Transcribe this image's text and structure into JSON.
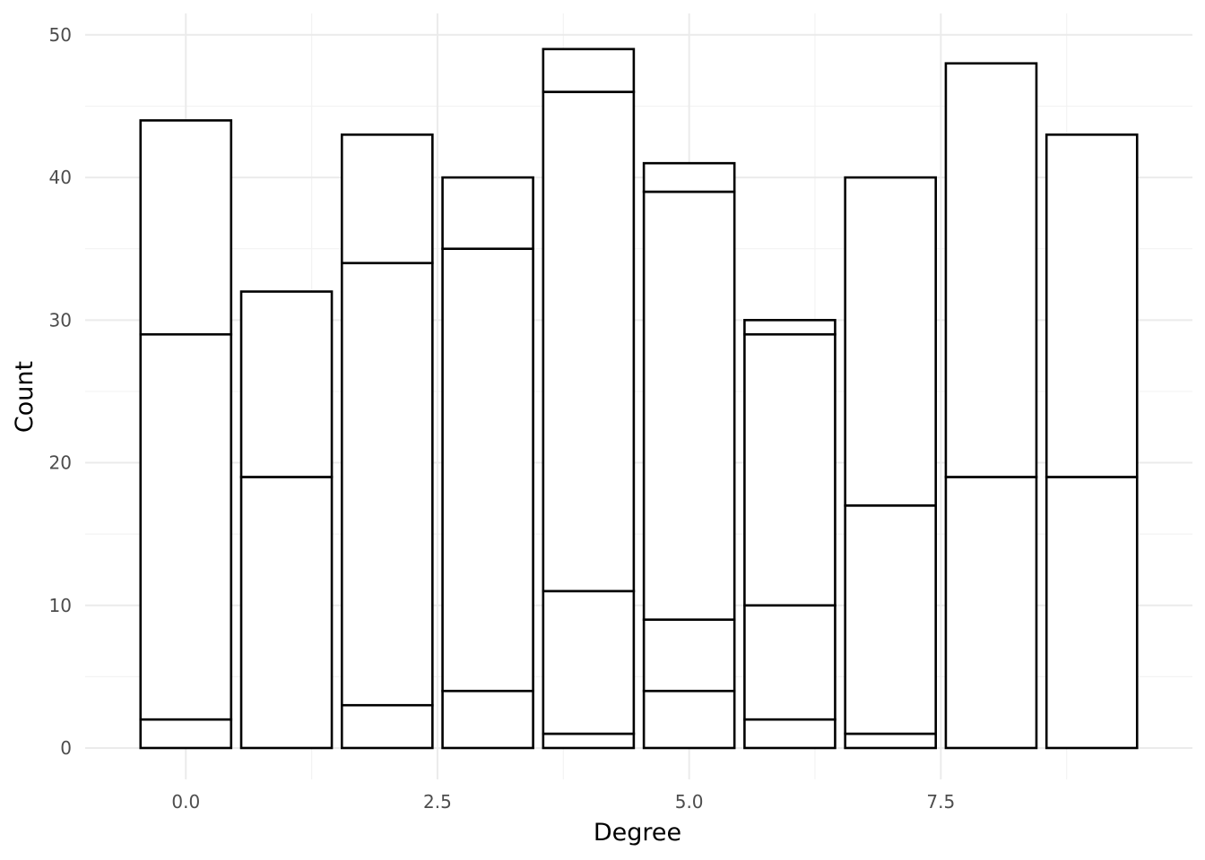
{
  "chart_data": {
    "type": "bar",
    "stacked": true,
    "xlabel": "Degree",
    "ylabel": "Count",
    "x": [
      0,
      1,
      2,
      3,
      4,
      5,
      6,
      7,
      8,
      9
    ],
    "xlim": [
      -1,
      10
    ],
    "ylim": [
      -2.2,
      51.5
    ],
    "x_ticks": [
      0.0,
      2.5,
      5.0,
      7.5
    ],
    "x_tick_labels": [
      "0.0",
      "2.5",
      "5.0",
      "7.5"
    ],
    "y_ticks": [
      0,
      10,
      20,
      30,
      40,
      50
    ],
    "y_tick_labels": [
      "0",
      "10",
      "20",
      "30",
      "40",
      "50"
    ],
    "grid": true,
    "legend": "none",
    "bars": [
      {
        "x": 0,
        "cumulative": [
          2,
          29,
          44
        ]
      },
      {
        "x": 1,
        "cumulative": [
          19,
          32
        ]
      },
      {
        "x": 2,
        "cumulative": [
          3,
          34,
          43
        ]
      },
      {
        "x": 3,
        "cumulative": [
          4,
          35,
          40
        ]
      },
      {
        "x": 4,
        "cumulative": [
          1,
          11,
          46,
          49
        ]
      },
      {
        "x": 5,
        "cumulative": [
          4,
          9,
          39,
          41
        ]
      },
      {
        "x": 6,
        "cumulative": [
          2,
          10,
          29,
          30
        ]
      },
      {
        "x": 7,
        "cumulative": [
          1,
          17,
          40
        ]
      },
      {
        "x": 8,
        "cumulative": [
          19,
          48
        ]
      },
      {
        "x": 9,
        "cumulative": [
          19,
          43
        ]
      }
    ],
    "totals": [
      44,
      32,
      43,
      40,
      49,
      41,
      30,
      40,
      48,
      43
    ]
  }
}
